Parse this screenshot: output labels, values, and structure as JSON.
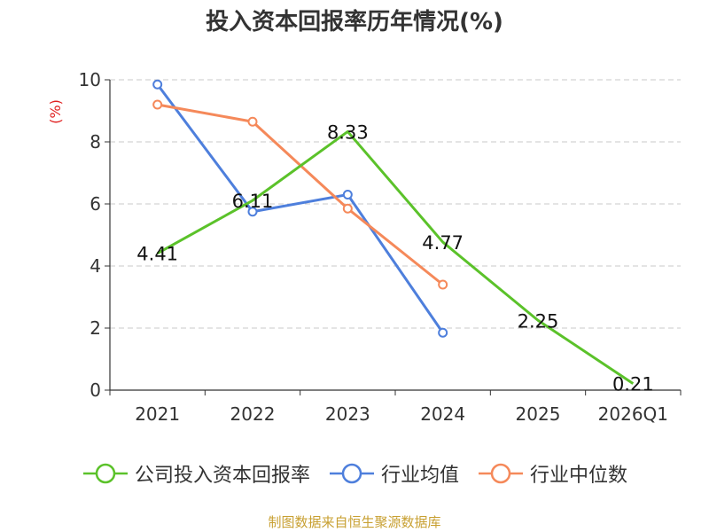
{
  "chart_data": {
    "type": "line",
    "title": "投入资本回报率历年情况(%)",
    "ylabel": "(%)",
    "xlabel": "",
    "categories": [
      "2021",
      "2022",
      "2023",
      "2024",
      "2025",
      "2026Q1"
    ],
    "ylim": [
      0,
      10
    ],
    "yticks": [
      0,
      2,
      4,
      6,
      8,
      10
    ],
    "grid": true,
    "legend_position": "bottom",
    "series": [
      {
        "name": "公司投入资本回报率",
        "color": "#5bc22a",
        "values": [
          4.41,
          6.11,
          8.33,
          4.77,
          2.25,
          0.21
        ],
        "labels": [
          "4.41",
          "6.11",
          "8.33",
          "4.77",
          "2.25",
          "0.21"
        ]
      },
      {
        "name": "行业均值",
        "color": "#4e7fdc",
        "values": [
          9.85,
          5.75,
          6.3,
          1.85,
          null,
          null
        ]
      },
      {
        "name": "行业中位数",
        "color": "#f5895a",
        "values": [
          9.2,
          8.65,
          5.85,
          3.4,
          null,
          null
        ]
      }
    ]
  },
  "source_text": "制图数据来自恒生聚源数据库"
}
